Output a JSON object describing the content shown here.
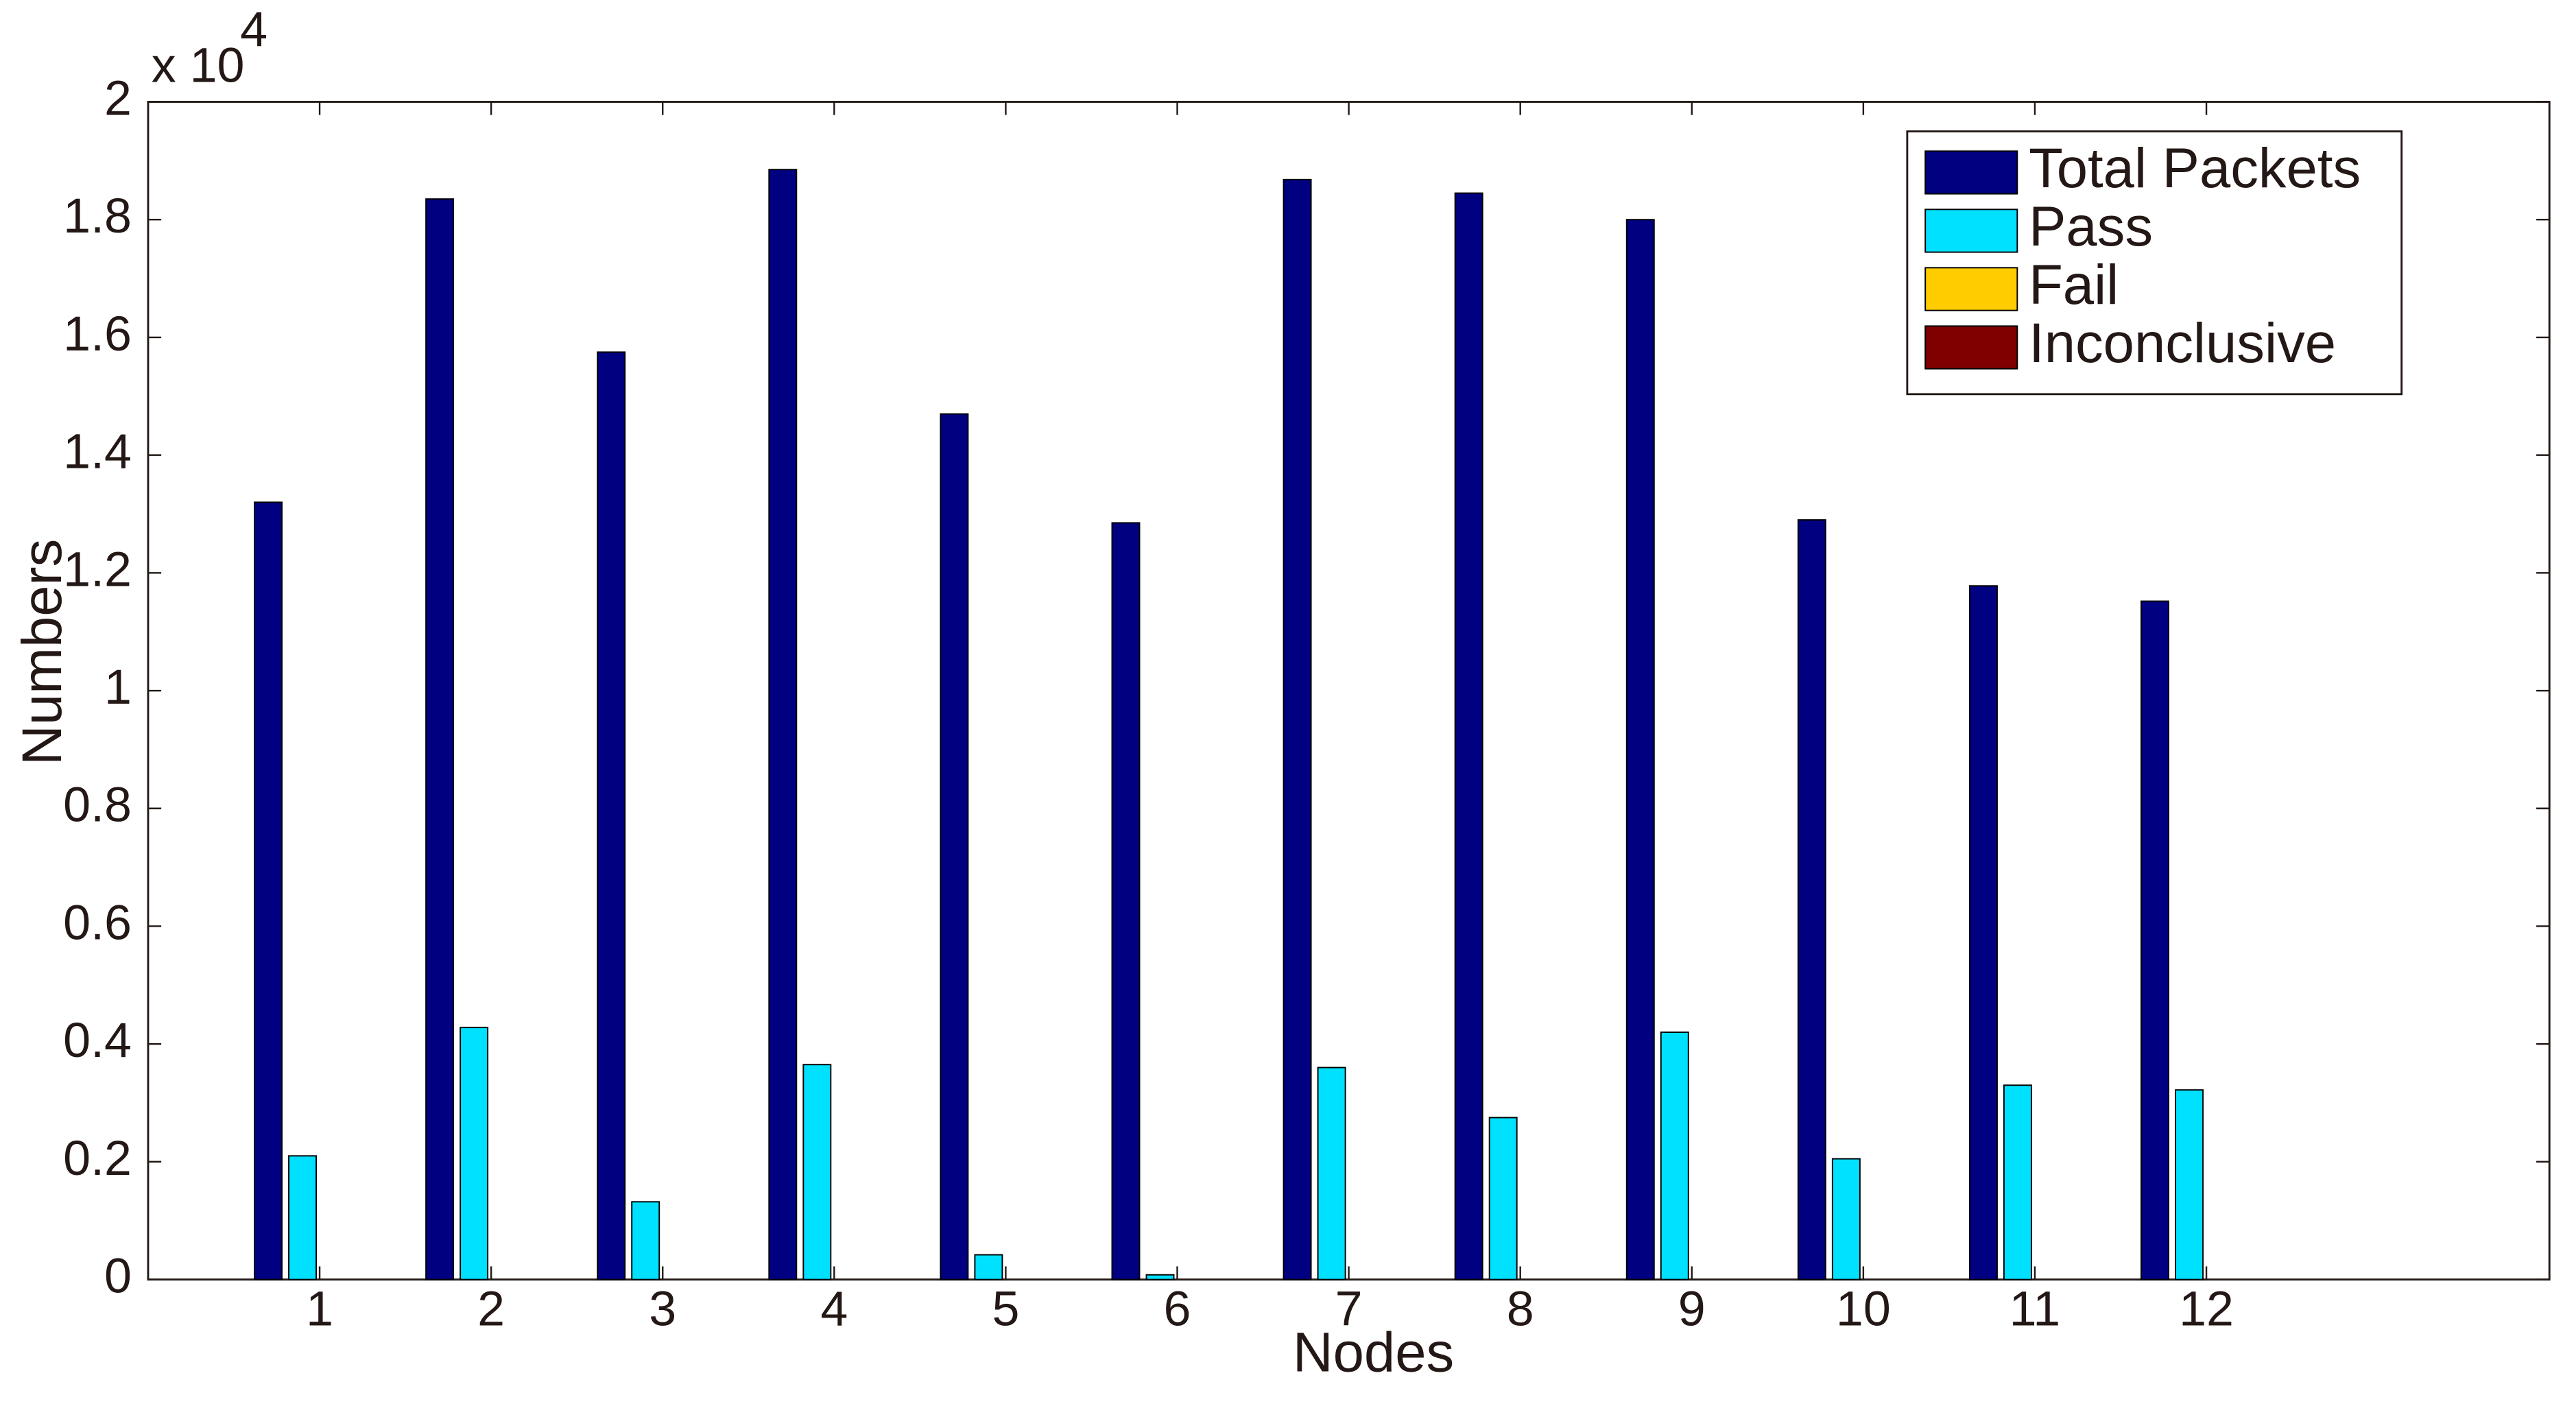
{
  "chart_data": {
    "type": "bar",
    "x_label": "Nodes",
    "y_label": "Numbers",
    "y_multiplier": {
      "base": "x 10",
      "exponent": "4"
    },
    "x": [
      1,
      2,
      3,
      4,
      5,
      6,
      7,
      8,
      9,
      10,
      11,
      12
    ],
    "xlim": [
      0,
      14
    ],
    "xticks": [
      1,
      2,
      3,
      4,
      5,
      6,
      7,
      8,
      9,
      10,
      11,
      12
    ],
    "ylim": [
      0,
      2
    ],
    "yticks": [
      0,
      0.2,
      0.4,
      0.6,
      0.8,
      1,
      1.2,
      1.4,
      1.6,
      1.8,
      2
    ],
    "legend_position": "upper right",
    "series": [
      {
        "name": "Total Packets",
        "color": "#000080",
        "values": [
          1.32,
          1.835,
          1.575,
          1.885,
          1.47,
          1.285,
          1.868,
          1.845,
          1.8,
          1.29,
          1.178,
          1.152
        ]
      },
      {
        "name": "Pass",
        "color": "#00e0ff",
        "values": [
          0.21,
          0.428,
          0.132,
          0.365,
          0.042,
          0.008,
          0.36,
          0.275,
          0.42,
          0.205,
          0.33,
          0.322
        ]
      },
      {
        "name": "Fail",
        "color": "#ffcc00",
        "values": [
          0,
          0,
          0,
          0,
          0,
          0,
          0,
          0,
          0,
          0,
          0,
          0
        ]
      },
      {
        "name": "Inconclusive",
        "color": "#800000",
        "values": [
          0,
          0,
          0,
          0,
          0,
          0,
          0,
          0,
          0,
          0,
          0,
          0
        ]
      }
    ]
  }
}
